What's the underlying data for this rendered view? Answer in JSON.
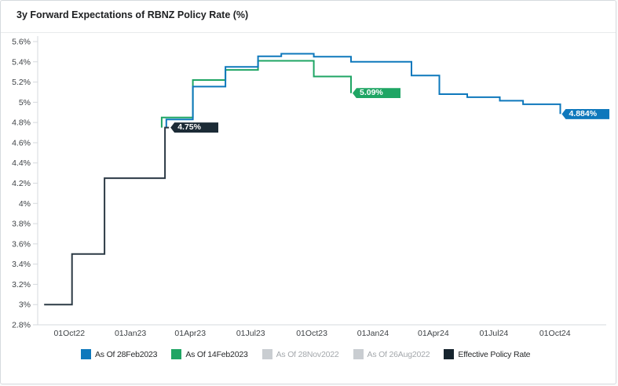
{
  "header": {
    "title": "3y Forward Expectations of RBNZ Policy Rate (%)"
  },
  "chart_data": {
    "type": "step-line",
    "title": "3y Forward Expectations of RBNZ Policy Rate (%)",
    "grid": "off",
    "legend_position": "bottom",
    "y_axis": {
      "unit": "%",
      "min": 2.8,
      "max": 5.6,
      "tick_step": 0.2,
      "ticks": [
        [
          2.8,
          "2.8%"
        ],
        [
          3.0,
          "3%"
        ],
        [
          3.2,
          "3.2%"
        ],
        [
          3.4,
          "3.4%"
        ],
        [
          3.6,
          "3.6%"
        ],
        [
          3.8,
          "3.8%"
        ],
        [
          4.0,
          "4%"
        ],
        [
          4.2,
          "4.2%"
        ],
        [
          4.4,
          "4.4%"
        ],
        [
          4.6,
          "4.6%"
        ],
        [
          4.8,
          "4.8%"
        ],
        [
          5.0,
          "5%"
        ],
        [
          5.2,
          "5.2%"
        ],
        [
          5.4,
          "5.4%"
        ],
        [
          5.6,
          "5.6%"
        ]
      ]
    },
    "x_axis": {
      "ticks": [
        [
          "2022-10-01",
          "01Oct22"
        ],
        [
          "2023-01-01",
          "01Jan23"
        ],
        [
          "2023-04-01",
          "01Apr23"
        ],
        [
          "2023-07-01",
          "01Jul23"
        ],
        [
          "2023-10-01",
          "01Oct23"
        ],
        [
          "2024-01-01",
          "01Jan24"
        ],
        [
          "2024-04-01",
          "01Apr24"
        ],
        [
          "2024-07-01",
          "01Jul24"
        ],
        [
          "2024-10-01",
          "01Oct24"
        ]
      ]
    },
    "series": [
      {
        "name": "As Of 14Feb2023",
        "color": "#1fa564",
        "start_value": 4.75,
        "points": [
          [
            "2023-02-17",
            4.85
          ],
          [
            "2023-04-05",
            5.22
          ],
          [
            "2023-05-24",
            5.32
          ],
          [
            "2023-07-12",
            5.41
          ],
          [
            "2023-10-04",
            5.255
          ],
          [
            "2023-11-29",
            5.09
          ]
        ],
        "end_date": "2023-11-29",
        "end_label": "5.09%",
        "end_label_color": "#1fa564"
      },
      {
        "name": "As Of 28Feb2023",
        "color": "#0e78bc",
        "start_value": 4.75,
        "points": [
          [
            "2023-02-24",
            4.83
          ],
          [
            "2023-04-05",
            5.155
          ],
          [
            "2023-05-24",
            5.35
          ],
          [
            "2023-07-12",
            5.455
          ],
          [
            "2023-08-16",
            5.48
          ],
          [
            "2023-10-04",
            5.45
          ],
          [
            "2023-11-29",
            5.4
          ],
          [
            "2024-02-28",
            5.265
          ],
          [
            "2024-04-10",
            5.08
          ],
          [
            "2024-05-22",
            5.05
          ],
          [
            "2024-07-10",
            5.015
          ],
          [
            "2024-08-14",
            4.98
          ],
          [
            "2024-10-09",
            4.884
          ]
        ],
        "end_date": "2024-10-09",
        "end_label": "4.884%",
        "end_label_color": "#0e78bc"
      },
      {
        "name": "Effective Policy Rate",
        "color": "#2c3a45",
        "points": [
          [
            "2022-08-24",
            3.0
          ],
          [
            "2022-10-05",
            3.5
          ],
          [
            "2022-11-23",
            4.25
          ],
          [
            "2023-02-22",
            4.75
          ]
        ],
        "end_date": "2023-02-28",
        "end_label": "4.75%",
        "end_label_color": "#1c2b36"
      }
    ],
    "legend": [
      {
        "label": "As Of 28Feb2023",
        "color": "#0e78bc",
        "active": true
      },
      {
        "label": "As Of 14Feb2023",
        "color": "#1fa564",
        "active": true
      },
      {
        "label": "As Of 28Nov2022",
        "color": "#c9cdd1",
        "active": false
      },
      {
        "label": "As Of 26Aug2022",
        "color": "#c9cdd1",
        "active": false
      },
      {
        "label": "Effective Policy Rate",
        "color": "#16242e",
        "active": true
      }
    ]
  },
  "colors": {
    "card_border": "#d6dade",
    "axis_line": "#d5d9dd",
    "tick_text": "#3e4246",
    "title_text": "#1d1f21",
    "inactive_text": "#a4a8ac"
  }
}
